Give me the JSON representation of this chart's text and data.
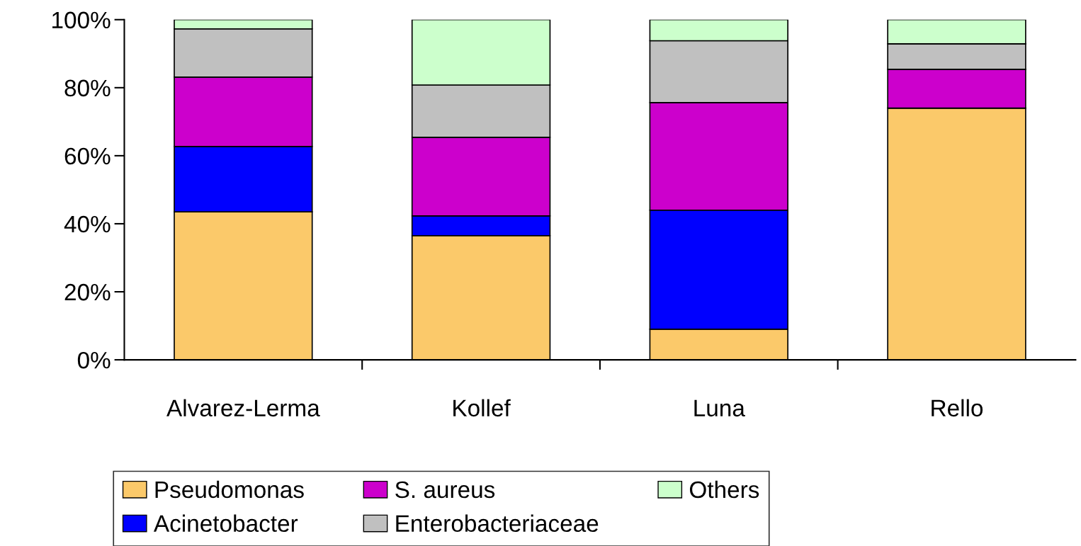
{
  "chart_data": {
    "type": "bar",
    "stacked": true,
    "categories": [
      "Alvarez-Lerma",
      "Kollef",
      "Luna",
      "Rello"
    ],
    "series": [
      {
        "name": "Pseudomonas",
        "color": "#fbc96a",
        "values": [
          43.5,
          36.5,
          9.0,
          74.0
        ]
      },
      {
        "name": "Acinetobacter",
        "color": "#0000ff",
        "values": [
          19.2,
          5.8,
          35.0,
          0
        ]
      },
      {
        "name": "S. aureus",
        "color": "#cc00cc",
        "values": [
          20.4,
          23.1,
          31.6,
          11.4
        ]
      },
      {
        "name": "Enterobacteriaceae",
        "color": "#c0c0c0",
        "values": [
          14.2,
          15.4,
          18.2,
          7.5
        ]
      },
      {
        "name": "Others",
        "color": "#ccffcc",
        "values": [
          2.7,
          19.2,
          6.2,
          7.1
        ]
      }
    ],
    "ylim": [
      0,
      100
    ],
    "yticks": [
      {
        "value": 0,
        "label": "0%"
      },
      {
        "value": 20,
        "label": "20%"
      },
      {
        "value": 40,
        "label": "40%"
      },
      {
        "value": 60,
        "label": "60%"
      },
      {
        "value": 80,
        "label": "80%"
      },
      {
        "value": 100,
        "label": "100%"
      }
    ],
    "grid": false,
    "legend": "bottom"
  }
}
